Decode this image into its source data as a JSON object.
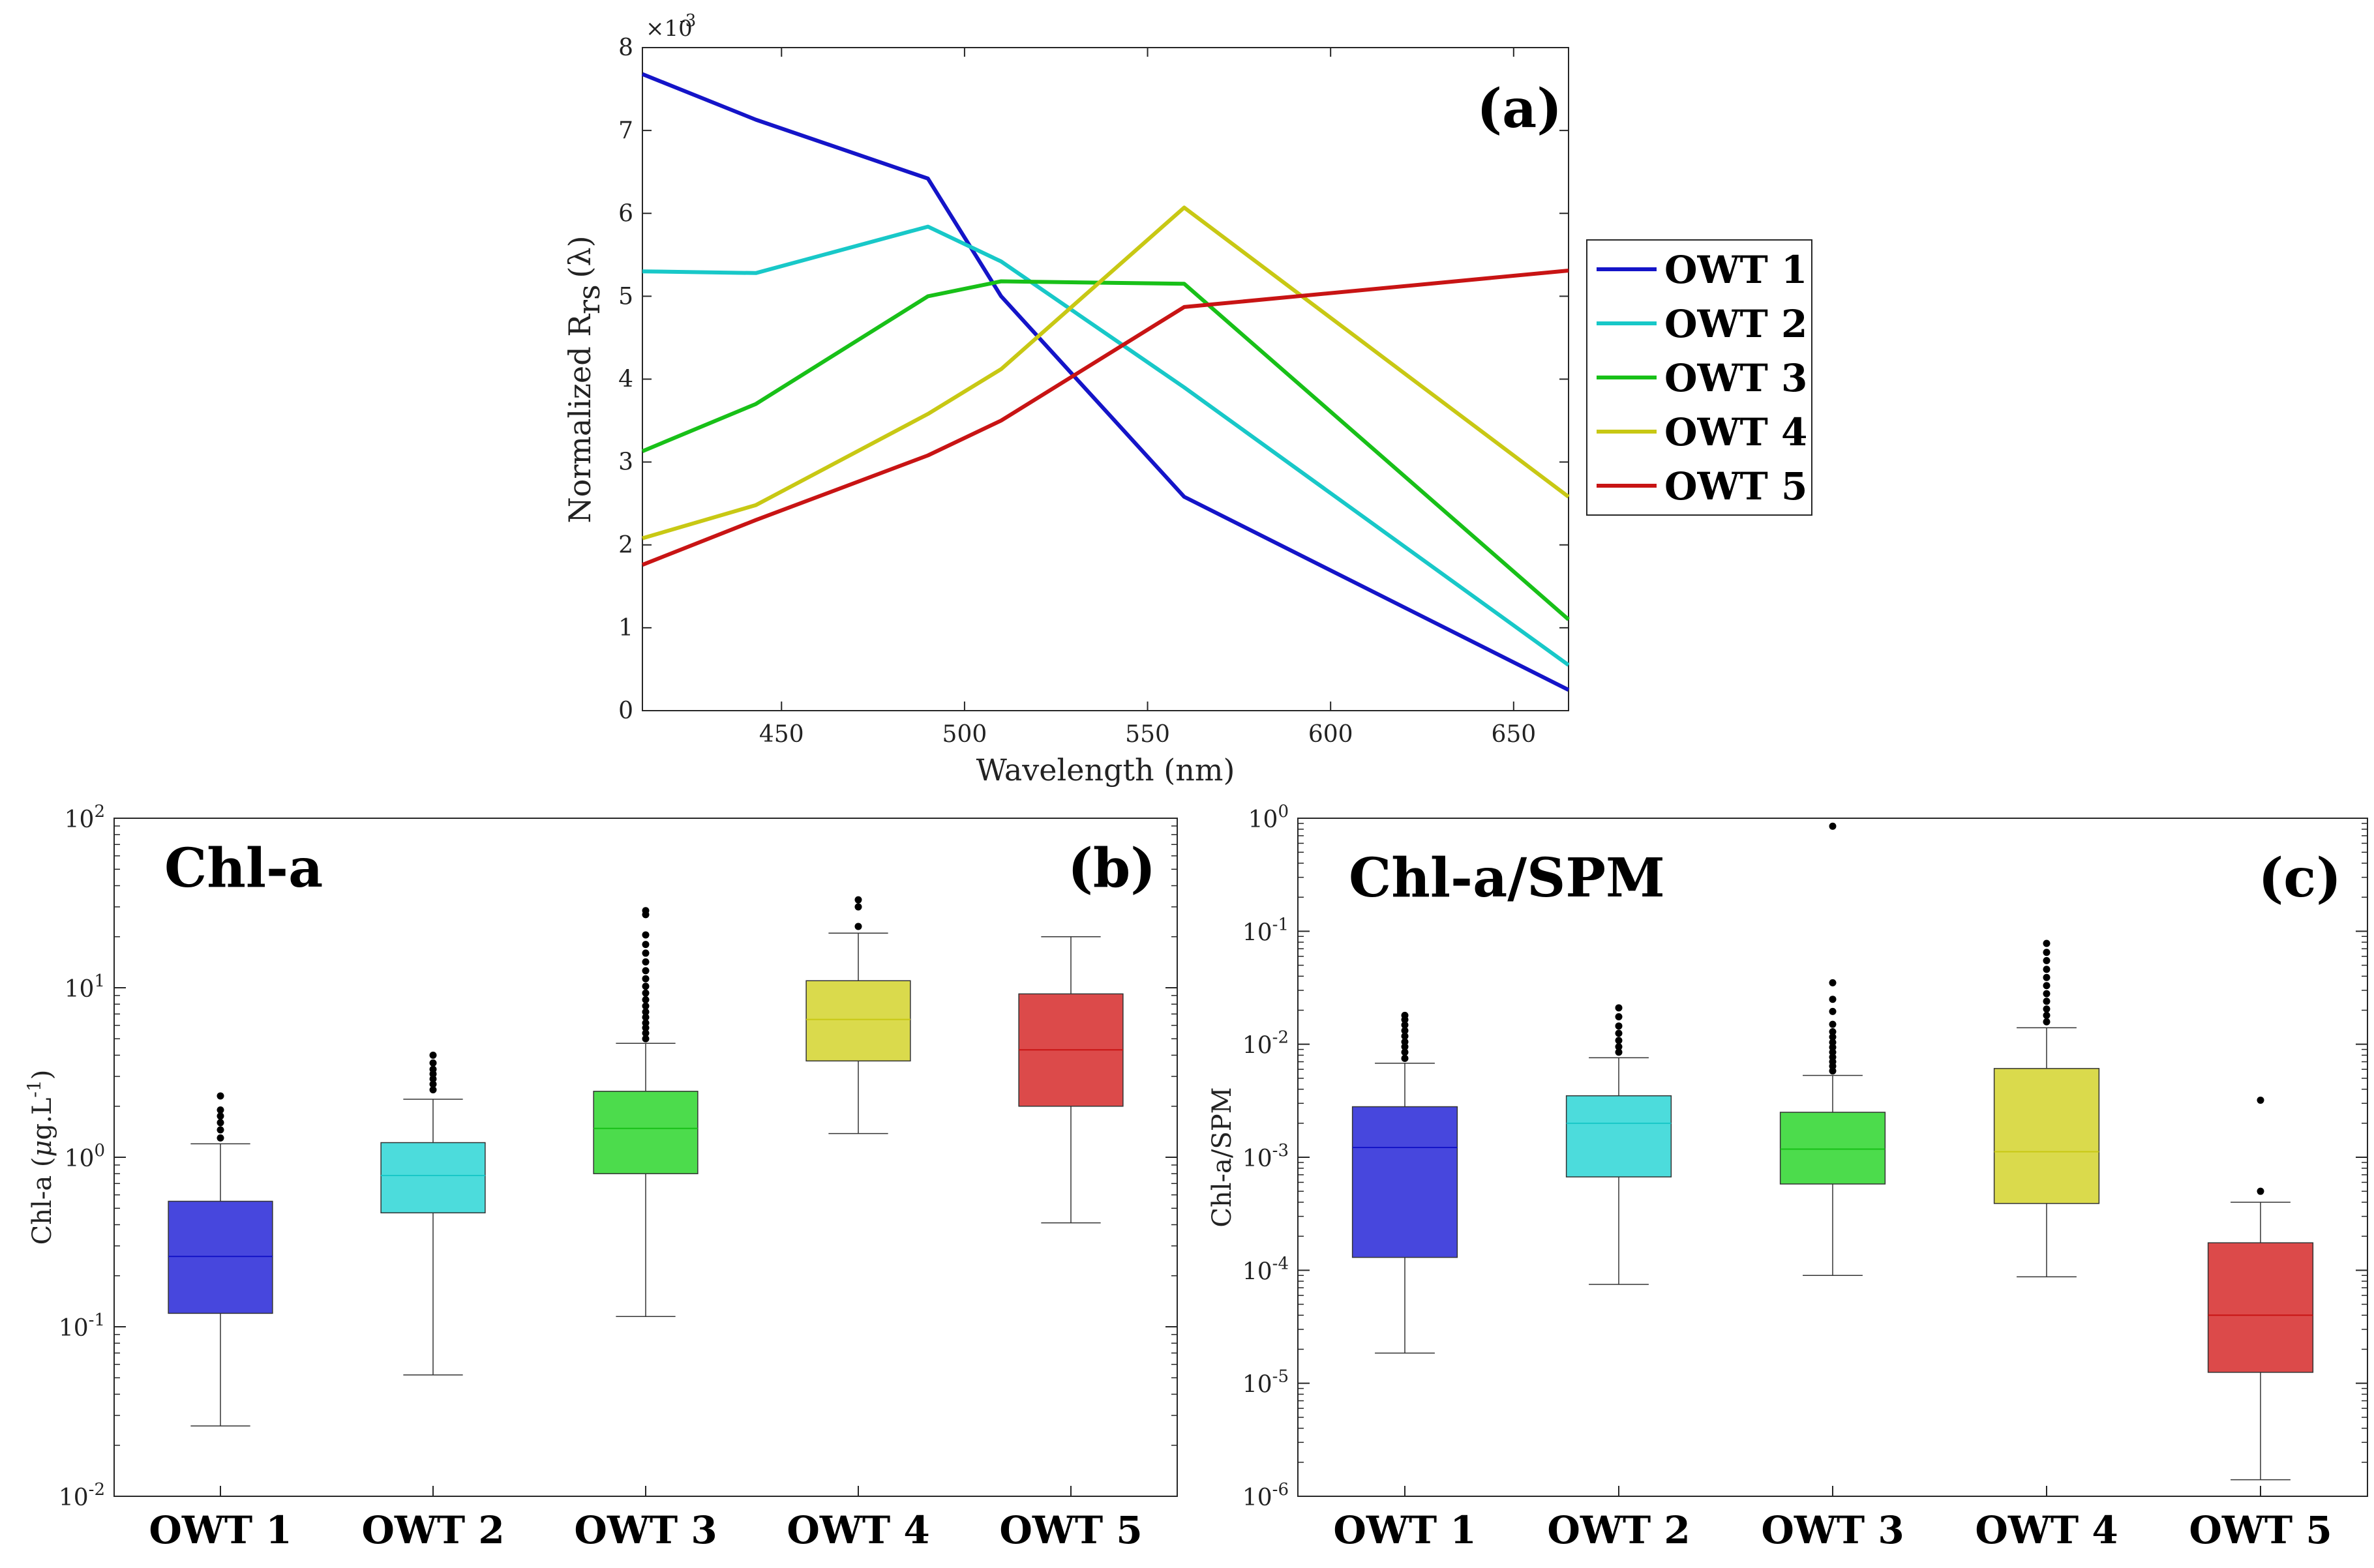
{
  "colors": {
    "OWT 1": "#1414c8",
    "OWT 2": "#18c8c8",
    "OWT 3": "#18c018",
    "OWT 4": "#c8c814",
    "OWT 5": "#c81414",
    "OWT 1 box": "#4747dd",
    "OWT 2 box": "#4cdcdc",
    "OWT 3 box": "#4cdc4c",
    "OWT 4 box": "#dada4c",
    "OWT 5 box": "#dc4a4a",
    "axis": "#262626"
  },
  "chart_data": [
    {
      "id": "a",
      "type": "line",
      "panel_label": "(a)",
      "xlabel": "Wavelength (nm)",
      "ylabel_main": "Normalized R",
      "ylabel_sub": "rs",
      "ylabel_tail": "(λ)",
      "exponent_base": "×10",
      "exponent_power": "-3",
      "xlim": [
        412,
        665
      ],
      "ylim": [
        0,
        8
      ],
      "xticks": [
        450,
        500,
        550,
        600,
        650
      ],
      "yticks": [
        0,
        1,
        2,
        3,
        4,
        5,
        6,
        7,
        8
      ],
      "legend_position": "outside right",
      "x": [
        412,
        443,
        490,
        510,
        560,
        665
      ],
      "series": [
        {
          "name": "OWT 1",
          "values": [
            7.68,
            7.13,
            6.42,
            5.0,
            2.58,
            0.25
          ]
        },
        {
          "name": "OWT 2",
          "values": [
            5.3,
            5.28,
            5.84,
            5.42,
            3.9,
            0.55
          ]
        },
        {
          "name": "OWT 3",
          "values": [
            3.13,
            3.7,
            5.0,
            5.18,
            5.15,
            1.1
          ]
        },
        {
          "name": "OWT 4",
          "values": [
            2.08,
            2.48,
            3.58,
            4.12,
            6.07,
            2.58
          ]
        },
        {
          "name": "OWT 5",
          "values": [
            1.76,
            2.3,
            3.08,
            3.5,
            4.87,
            5.31
          ]
        }
      ]
    },
    {
      "id": "b",
      "type": "box",
      "panel_label": "(b)",
      "title": "Chl-a",
      "ylabel_main": "Chl-a (",
      "ylabel_mu": "μ",
      "ylabel_rest": "g.L",
      "ylabel_power": "-1",
      "ylabel_close": ")",
      "yscale": "log",
      "ylim_exp": [
        -2,
        2
      ],
      "ytick_base": "10",
      "ytick_powers": [
        "-2",
        "-1",
        "0",
        "1",
        "2"
      ],
      "categories": [
        "OWT 1",
        "OWT 2",
        "OWT 3",
        "OWT 4",
        "OWT 5"
      ],
      "boxes": [
        {
          "name": "OWT 1",
          "whisker_low": 0.026,
          "q1": 0.12,
          "median": 0.26,
          "q3": 0.55,
          "whisker_high": 1.2,
          "outliers": [
            1.3,
            1.45,
            1.6,
            1.75,
            1.9,
            2.3
          ]
        },
        {
          "name": "OWT 2",
          "whisker_low": 0.052,
          "q1": 0.47,
          "median": 0.78,
          "q3": 1.22,
          "whisker_high": 2.2,
          "outliers": [
            2.5,
            2.7,
            2.9,
            3.1,
            3.3,
            3.6,
            4.0
          ]
        },
        {
          "name": "OWT 3",
          "whisker_low": 0.115,
          "q1": 0.8,
          "median": 1.48,
          "q3": 2.45,
          "whisker_high": 4.7,
          "outliers": [
            5.0,
            5.4,
            5.8,
            6.2,
            6.7,
            7.2,
            7.8,
            8.5,
            9.3,
            10.2,
            11.3,
            12.6,
            14.2,
            16.0,
            18.0,
            20.5,
            27.0,
            28.5
          ]
        },
        {
          "name": "OWT 4",
          "whisker_low": 1.38,
          "q1": 3.7,
          "median": 6.5,
          "q3": 11.0,
          "whisker_high": 21.0,
          "outliers": [
            23.0,
            30.0,
            33.0
          ]
        },
        {
          "name": "OWT 5",
          "whisker_low": 0.41,
          "q1": 2.0,
          "median": 4.3,
          "q3": 9.2,
          "whisker_high": 20.0,
          "outliers": []
        }
      ]
    },
    {
      "id": "c",
      "type": "box",
      "panel_label": "(c)",
      "title": "Chl-a/SPM",
      "ylabel": "Chl-a/SPM",
      "yscale": "log",
      "ylim_exp": [
        -6,
        0
      ],
      "ytick_base": "10",
      "ytick_powers": [
        "-6",
        "-5",
        "-4",
        "-3",
        "-2",
        "-1",
        "0"
      ],
      "categories": [
        "OWT 1",
        "OWT 2",
        "OWT 3",
        "OWT 4",
        "OWT 5"
      ],
      "boxes": [
        {
          "name": "OWT 1",
          "whisker_low": 1.85e-05,
          "q1": 0.00013,
          "median": 0.00122,
          "q3": 0.0028,
          "whisker_high": 0.0068,
          "outliers": [
            0.0075,
            0.0085,
            0.0095,
            0.0105,
            0.0118,
            0.0132,
            0.0148,
            0.0165,
            0.018
          ]
        },
        {
          "name": "OWT 2",
          "whisker_low": 7.5e-05,
          "q1": 0.00067,
          "median": 0.002,
          "q3": 0.0035,
          "whisker_high": 0.0076,
          "outliers": [
            0.0085,
            0.0095,
            0.0108,
            0.0125,
            0.0145,
            0.0175,
            0.021
          ]
        },
        {
          "name": "OWT 3",
          "whisker_low": 9e-05,
          "q1": 0.00058,
          "median": 0.00118,
          "q3": 0.0025,
          "whisker_high": 0.0053,
          "outliers": [
            0.0058,
            0.0064,
            0.007,
            0.0077,
            0.0085,
            0.0094,
            0.0104,
            0.0116,
            0.0129,
            0.015,
            0.0195,
            0.025,
            0.035,
            0.85
          ]
        },
        {
          "name": "OWT 4",
          "whisker_low": 8.75e-05,
          "q1": 0.00039,
          "median": 0.00112,
          "q3": 0.0061,
          "whisker_high": 0.014,
          "outliers": [
            0.0158,
            0.018,
            0.0205,
            0.024,
            0.028,
            0.033,
            0.039,
            0.046,
            0.055,
            0.065,
            0.078
          ]
        },
        {
          "name": "OWT 5",
          "whisker_low": 1.4e-06,
          "q1": 1.25e-05,
          "median": 4e-05,
          "q3": 0.000175,
          "whisker_high": 0.0004,
          "outliers": [
            0.0005,
            0.0032
          ]
        }
      ]
    }
  ]
}
